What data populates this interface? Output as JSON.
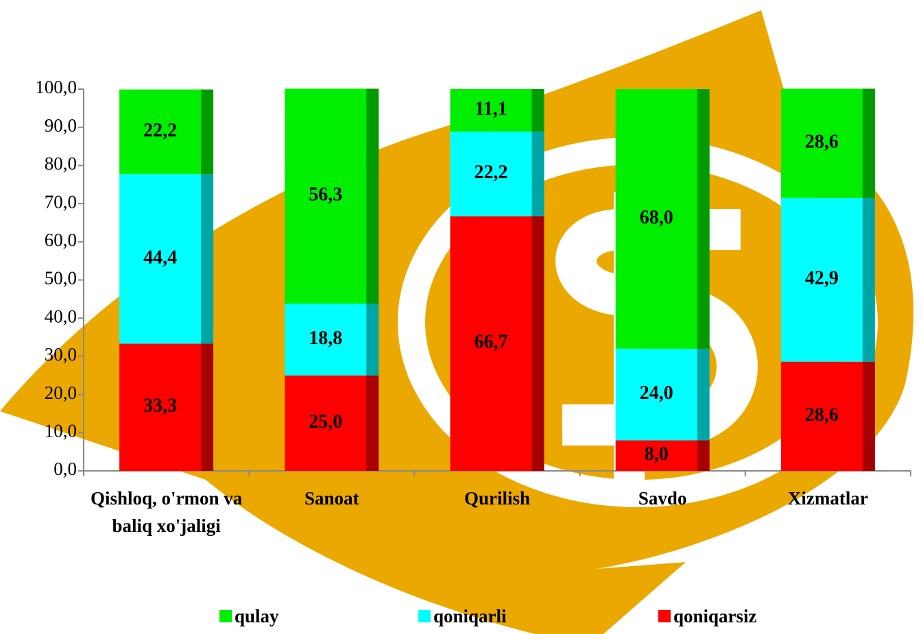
{
  "chart_data": {
    "type": "stacked-bar",
    "categories": [
      "Qishloq, o'rmon va baliq xo'jaligi",
      "Sanoat",
      "Qurilish",
      "Savdo",
      "Xizmatlar"
    ],
    "series": [
      {
        "name": "qulay",
        "color": "#00ee00",
        "values": [
          22.2,
          56.3,
          11.1,
          68.0,
          28.6
        ],
        "value_labels": [
          "22,2",
          "56,3",
          "11,1",
          "68,0",
          "28,6"
        ]
      },
      {
        "name": "qoniqarli",
        "color": "#00ffff",
        "values": [
          44.4,
          18.8,
          22.2,
          24.0,
          42.9
        ],
        "value_labels": [
          "44,4",
          "18,8",
          "22,2",
          "24,0",
          "42,9"
        ]
      },
      {
        "name": "qoniqarsiz",
        "color": "#ff0000",
        "values": [
          33.3,
          25.0,
          66.7,
          8.0,
          28.6
        ],
        "value_labels": [
          "33,3",
          "25,0",
          "66,7",
          "8,0",
          "28,6"
        ]
      }
    ],
    "ylim": [
      0,
      100
    ],
    "yticks": [
      {
        "value": 0,
        "label": "0,0"
      },
      {
        "value": 10,
        "label": "10,0"
      },
      {
        "value": 20,
        "label": "20,0"
      },
      {
        "value": 30,
        "label": "30,0"
      },
      {
        "value": 40,
        "label": "40,0"
      },
      {
        "value": 50,
        "label": "50,0"
      },
      {
        "value": 60,
        "label": "60,0"
      },
      {
        "value": 70,
        "label": "70,0"
      },
      {
        "value": 80,
        "label": "80,0"
      },
      {
        "value": 90,
        "label": "90,0"
      },
      {
        "value": 100,
        "label": "100,0"
      }
    ],
    "legend": "bottom"
  }
}
